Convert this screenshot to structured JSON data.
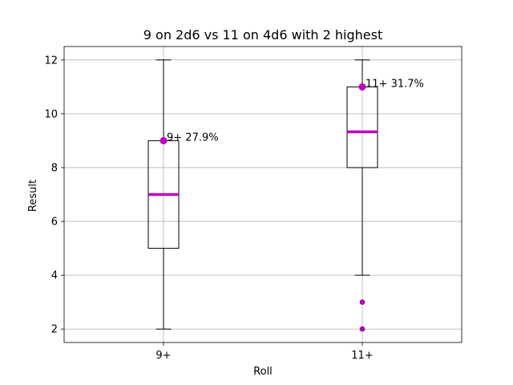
{
  "chart_data": {
    "type": "box",
    "title": "9 on 2d6 vs 11 on 4d6 with 2 highest",
    "xlabel": "Roll",
    "ylabel": "Result",
    "ylim": [
      1.5,
      12.5
    ],
    "yticks": [
      2,
      4,
      6,
      8,
      10,
      12
    ],
    "grid": true,
    "categories": [
      "9+",
      "11+"
    ],
    "boxes": [
      {
        "label": "9+",
        "whisker_low": 2,
        "q1": 5,
        "median": 7,
        "q3": 9,
        "whisker_high": 12,
        "outliers": [],
        "marker": {
          "y": 9,
          "text": "9+ 27.9%"
        }
      },
      {
        "label": "11+",
        "whisker_low": 4,
        "q1": 8,
        "median": 9.33,
        "q3": 11,
        "whisker_high": 12,
        "outliers": [
          3,
          2
        ],
        "marker": {
          "y": 11,
          "text": "11+ 31.7%"
        }
      }
    ],
    "colors": {
      "median": "#bf00bf",
      "marker": "#bf00bf",
      "box": "#000000",
      "grid": "#b0b0b0"
    }
  }
}
